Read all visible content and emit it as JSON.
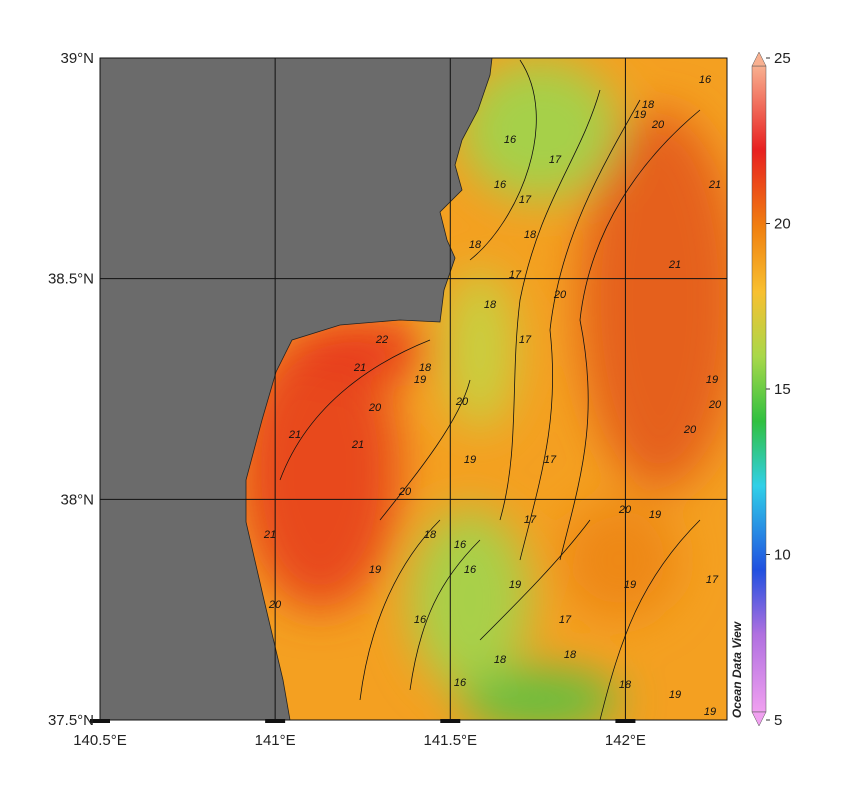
{
  "map": {
    "xlim": [
      140.5,
      142.29
    ],
    "ylim": [
      37.5,
      39
    ],
    "xticks": [
      {
        "value": 140.5,
        "label": "140.5°E"
      },
      {
        "value": 141,
        "label": "141°E"
      },
      {
        "value": 141.5,
        "label": "141.5°E"
      },
      {
        "value": 142,
        "label": "142°E"
      }
    ],
    "yticks": [
      {
        "value": 37.5,
        "label": "37.5°N"
      },
      {
        "value": 38,
        "label": "38°N"
      },
      {
        "value": 38.5,
        "label": "38.5°N"
      },
      {
        "value": 39,
        "label": "39°N"
      }
    ],
    "grid": true,
    "colorbar": {
      "range": [
        5,
        25
      ],
      "ticks": [
        5,
        10,
        15,
        20,
        25
      ],
      "label": "Ocean Data View"
    },
    "contour_labels": [
      "16",
      "18",
      "19",
      "20",
      "16",
      "17",
      "16",
      "17",
      "21",
      "21",
      "18",
      "18",
      "17",
      "20",
      "18",
      "17",
      "22",
      "21",
      "18",
      "19",
      "20",
      "20",
      "21",
      "21",
      "19",
      "17",
      "20",
      "21",
      "18",
      "16",
      "17",
      "20",
      "19",
      "19",
      "16",
      "19",
      "19",
      "17",
      "16",
      "20",
      "18",
      "16",
      "18",
      "18",
      "19",
      "19",
      "20",
      "20",
      "19",
      "17"
    ]
  }
}
